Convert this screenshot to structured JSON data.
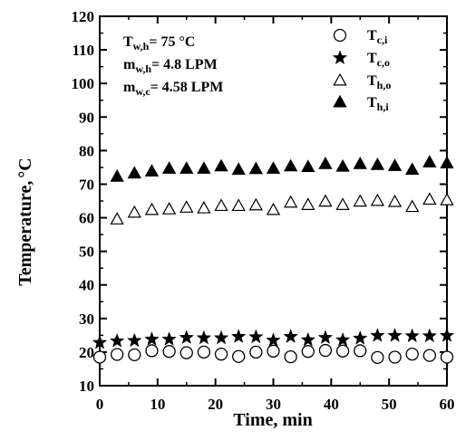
{
  "chart_data": {
    "type": "scatter",
    "xlabel": "Time, min",
    "ylabel": "Temperature,",
    "ylabel_unit": "°C",
    "xlim": [
      0,
      60
    ],
    "ylim": [
      10,
      120
    ],
    "x_ticks": [
      "0",
      "10",
      "20",
      "30",
      "40",
      "50",
      "60"
    ],
    "y_ticks": [
      "10",
      "20",
      "30",
      "40",
      "50",
      "60",
      "70",
      "80",
      "90",
      "100",
      "110",
      "120"
    ],
    "grid": false,
    "legend_position": "top-right",
    "annotations": [
      {
        "main": "T",
        "sub": "w,h",
        "text": "= 75 °C"
      },
      {
        "main": "m",
        "sub": "w,h",
        "text": "= 4.8  LPM"
      },
      {
        "main": "m",
        "sub": "w,c",
        "text": "= 4.58 LPM"
      }
    ],
    "x": [
      0,
      3,
      6,
      9,
      12,
      15,
      18,
      21,
      24,
      27,
      30,
      33,
      36,
      39,
      42,
      45,
      48,
      51,
      54,
      57,
      60
    ],
    "series": [
      {
        "name": "Tc,i",
        "main": "T",
        "sub": "c,i",
        "marker": "circle-open",
        "x": [
          0,
          3,
          6,
          9,
          12,
          15,
          18,
          21,
          24,
          27,
          30,
          33,
          36,
          39,
          42,
          45,
          48,
          51,
          54,
          57,
          60
        ],
        "values": [
          18.5,
          19.3,
          19.2,
          20.4,
          20.2,
          19.8,
          20,
          19.4,
          18.7,
          20,
          20.3,
          18.6,
          20.2,
          20.5,
          20.3,
          20.4,
          18.4,
          18.5,
          19.4,
          19,
          18.5
        ]
      },
      {
        "name": "Tc,o",
        "main": "T",
        "sub": "c,o",
        "marker": "star",
        "x": [
          0,
          3,
          6,
          9,
          12,
          15,
          18,
          21,
          24,
          27,
          30,
          33,
          36,
          39,
          42,
          45,
          48,
          51,
          54,
          57,
          60
        ],
        "values": [
          22.8,
          23.3,
          23.4,
          23.8,
          23.8,
          24.3,
          24.2,
          24.2,
          24.6,
          24.5,
          23.5,
          24.6,
          23.6,
          24.3,
          23.6,
          24.1,
          24.9,
          24.9,
          24.8,
          24.8,
          24.9
        ]
      },
      {
        "name": "Th,o",
        "main": "T",
        "sub": "h,o",
        "marker": "triangle-open",
        "x": [
          3,
          6,
          9,
          12,
          15,
          18,
          21,
          24,
          27,
          30,
          33,
          36,
          39,
          42,
          45,
          48,
          51,
          54,
          57,
          60
        ],
        "values": [
          59.5,
          61.5,
          62.3,
          62.5,
          63,
          62.8,
          63.5,
          63.5,
          63.7,
          62.3,
          64.5,
          63.8,
          64.8,
          63.8,
          64.8,
          65,
          64.7,
          63.2,
          65.4,
          65.2
        ]
      },
      {
        "name": "Th,i",
        "main": "T",
        "sub": "h,i",
        "marker": "triangle-filled",
        "x": [
          3,
          6,
          9,
          12,
          15,
          18,
          21,
          24,
          27,
          30,
          33,
          36,
          39,
          42,
          45,
          48,
          51,
          54,
          57,
          60
        ],
        "values": [
          72.2,
          73.2,
          73.8,
          74.6,
          74.6,
          74.6,
          75.3,
          74.3,
          74.5,
          74.6,
          75.3,
          75.1,
          76,
          75.2,
          76,
          75.7,
          75.4,
          74.3,
          76.5,
          76.2
        ]
      }
    ]
  }
}
